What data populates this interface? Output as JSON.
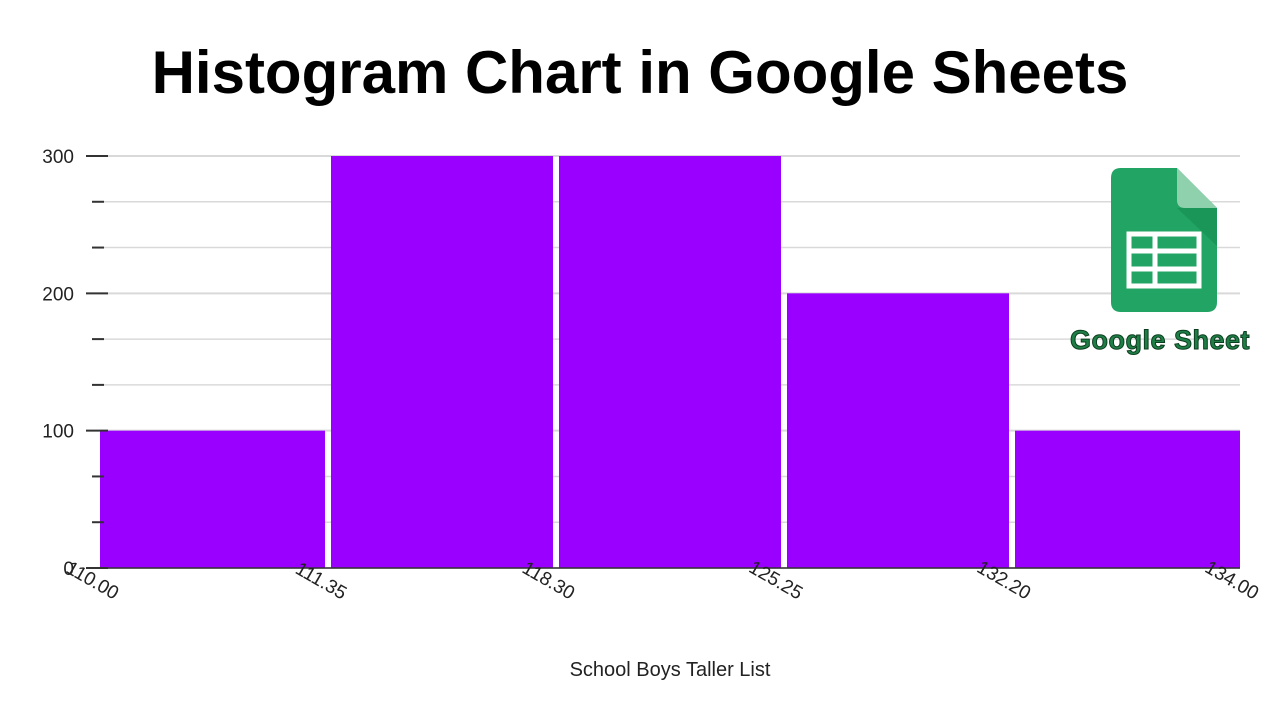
{
  "chart_data": {
    "type": "bar",
    "title": "Histogram Chart in Google Sheets",
    "xlabel": "School Boys Taller List",
    "ylabel": "",
    "bin_edges": [
      "110.00",
      "111.35",
      "118.30",
      "125.25",
      "132.20",
      "134.00"
    ],
    "values": [
      100,
      300,
      300,
      200,
      100
    ],
    "ylim": [
      0,
      300
    ],
    "y_ticks": [
      0,
      100,
      200,
      300
    ],
    "grid": true,
    "bar_color": "#9900ff",
    "grid_color": "#d9d9d9"
  },
  "logo": {
    "name": "google-sheets-icon",
    "caption": "Google Sheet",
    "color": "#21a464"
  }
}
